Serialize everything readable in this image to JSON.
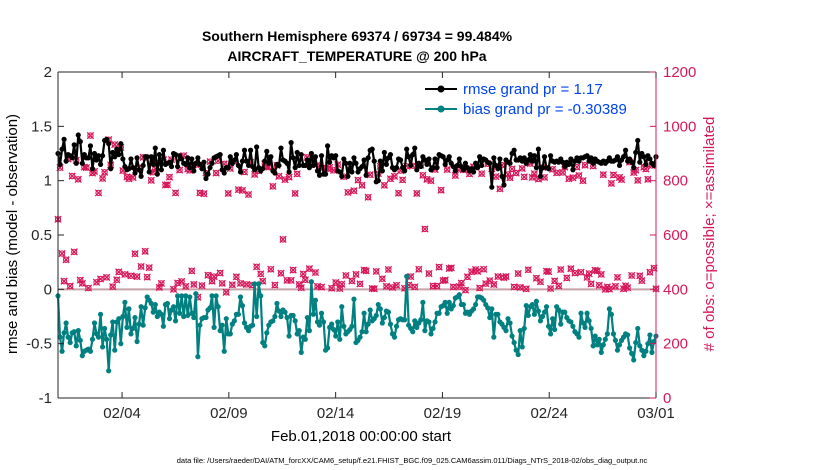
{
  "chart_data": {
    "type": "line",
    "title_line1": "Southern Hemisphere 69374 / 69734 = 99.484%",
    "title_line2": "AIRCRAFT_TEMPERATURE @ 200 hPa",
    "xlabel": "Feb.01,2018 00:00:00 start",
    "ylabel_left": "rmse and bias (model - observation)",
    "ylabel_right": "# of obs: o=possible; ×=assimilated",
    "footnote": "data file: /Users/raeder/DAI/ATM_forcXX/CAM6_setup/f.e21.FHIST_BGC.f09_025.CAM6assim.011/Diags_NTrS_2018-02/obs_diag_output.nc",
    "xlim": [
      0,
      28
    ],
    "ylim_left": [
      -1,
      2
    ],
    "ylim_right": [
      0,
      1200
    ],
    "x_ticks": [
      3,
      8,
      13,
      18,
      23,
      28
    ],
    "x_tick_labels": [
      "02/04",
      "02/09",
      "02/14",
      "02/19",
      "02/24",
      "03/01"
    ],
    "y_left_ticks": [
      -1,
      -0.5,
      0,
      0.5,
      1,
      1.5,
      2
    ],
    "y_left_tick_labels": [
      "-1",
      "-0.5",
      "0",
      "0.5",
      "1",
      "1.5",
      "2"
    ],
    "y_right_ticks": [
      0,
      200,
      400,
      600,
      800,
      1000,
      1200
    ],
    "y_right_tick_labels": [
      "0",
      "200",
      "400",
      "600",
      "800",
      "1000",
      "1200"
    ],
    "legend_location": "top-right",
    "colors": {
      "rmse": "#000000",
      "bias": "#008080",
      "obs": "#d6185b",
      "zero_line": "#c8a0a8",
      "legend_text": "#0044ee"
    },
    "series": [
      {
        "name": "rmse grand pr = 1.17",
        "axis": "left",
        "values": [
          1.25,
          1.15,
          1.29,
          1.38,
          1.18,
          1.24,
          1.23,
          1.21,
          1.33,
          1.16,
          1.42,
          1.36,
          1.16,
          1.24,
          1.21,
          1.21,
          1.32,
          1.11,
          1.25,
          1.19,
          1.23,
          1.15,
          1.23,
          1.37,
          1.38,
          1.34,
          1.11,
          1.26,
          1.22,
          1.29,
          1.24,
          1.34,
          1.2,
          1.13,
          1.1,
          1.11,
          1.2,
          1.12,
          1.07,
          1.21,
          1.1,
          1.04,
          1.14,
          1.22,
          1.22,
          1.08,
          1.22,
          1.15,
          1.3,
          1.06,
          1.24,
          1.1,
          1.28,
          1.15,
          1.16,
          1.17,
          1.13,
          1.25,
          1.24,
          1.13,
          1.23,
          1.2,
          1.16,
          1.15,
          1.21,
          1.12,
          1.2,
          1.09,
          1.16,
          1.21,
          1.15,
          1.11,
          1.17,
          1.02,
          1.06,
          1.12,
          1.16,
          1.21,
          1.22,
          1.23,
          1.24,
          1.1,
          1.07,
          1.12,
          1.12,
          1.22,
          1.16,
          1.19,
          1.24,
          1.14,
          1.08,
          1.18,
          1.28,
          1.18,
          1.14,
          1.28,
          1.13,
          1.1,
          1.31,
          1.12,
          1.09,
          1.11,
          1.18,
          1.27,
          1.16,
          1.22,
          1.09,
          1.07,
          1.15,
          1.14,
          1.3,
          1.19,
          1.18,
          1.16,
          1.08,
          1.35,
          1.21,
          1.12,
          1.26,
          1.14,
          1.24,
          1.14,
          1.14,
          1.19,
          1.12,
          1.25,
          1.14,
          1.22,
          1.09,
          1.05,
          1.23,
          1.06,
          1.06,
          1.32,
          1.17,
          1.23,
          1.21,
          1.23,
          1.09,
          1.08,
          1.04,
          1.2,
          1.16,
          1.04,
          1.16,
          1.08,
          1.21,
          1.16,
          1.08,
          1.11,
          1.13,
          1.19,
          1.05,
          1.21,
          1.28,
          1.29,
          1.18,
          0.99,
          1.0,
          1.18,
          1.09,
          1.26,
          1.15,
          1.21,
          1.24,
          1.12,
          1.1,
          1.12,
          1.2,
          1.19,
          1.12,
          1.09,
          1.29,
          1.22,
          1.14,
          1.24,
          1.3,
          1.1,
          1.16,
          1.13,
          1.22,
          1.19,
          1.15,
          1.2,
          1.1,
          1.12,
          1.2,
          1.12,
          1.24,
          1.23,
          1.22,
          1.15,
          1.19,
          1.22,
          1.16,
          1.13,
          1.09,
          1.14,
          1.2,
          1.13,
          1.1,
          1.16,
          1.12,
          1.09,
          1.11,
          1.08,
          1.16,
          1.12,
          1.22,
          1.14,
          1.2,
          1.19,
          1.17,
          1.16,
          0.94,
          1.21,
          1.14,
          1.11,
          1.2,
          1.04,
          0.96,
          1.19,
          1.17,
          1.16,
          1.25,
          1.28,
          1.19,
          1.19,
          1.21,
          1.18,
          1.21,
          1.16,
          1.19,
          1.24,
          1.18,
          1.23,
          1.12,
          1.29,
          1.04,
          1.12,
          1.22,
          1.12,
          1.11,
          1.23,
          1.18,
          1.17,
          1.18,
          1.17,
          1.2,
          1.17,
          1.13,
          1.17,
          1.15,
          1.2,
          1.1,
          1.18,
          1.21,
          1.18,
          1.21,
          1.21,
          1.22,
          1.23,
          1.18,
          1.21,
          1.16,
          1.2,
          1.18,
          1.17,
          1.16,
          1.18,
          1.16,
          1.18,
          1.21,
          1.18,
          1.18,
          1.19,
          1.22,
          1.14,
          1.19,
          1.22,
          1.28,
          1.18,
          1.2,
          1.17,
          1.12,
          1.26,
          1.37,
          1.17,
          1.25,
          1.22,
          1.15,
          1.23,
          1.2,
          1.16,
          1.14,
          1.22
        ]
      },
      {
        "name": "bias grand pr = -0.30389",
        "axis": "left",
        "values": [
          -0.06,
          -0.44,
          -0.57,
          -0.4,
          -0.31,
          -0.44,
          -0.49,
          -0.4,
          -0.39,
          -0.52,
          -0.38,
          -0.47,
          -0.61,
          -0.57,
          -0.56,
          -0.55,
          -0.57,
          -0.46,
          -0.31,
          -0.41,
          -0.44,
          -0.23,
          -0.53,
          -0.36,
          -0.46,
          -0.75,
          -0.42,
          -0.3,
          -0.56,
          -0.3,
          -0.27,
          -0.5,
          -0.25,
          -0.12,
          -0.35,
          -0.18,
          -0.41,
          -0.36,
          -0.26,
          -0.48,
          -0.32,
          -0.16,
          -0.33,
          -0.17,
          -0.07,
          -0.1,
          -0.13,
          -0.21,
          -0.14,
          -0.25,
          -0.21,
          -0.23,
          -0.34,
          -0.14,
          -0.13,
          -0.27,
          -0.19,
          -0.16,
          -0.29,
          -0.06,
          -0.22,
          -0.06,
          -0.25,
          -0.06,
          -0.24,
          -0.07,
          -0.22,
          -0.26,
          -0.04,
          -0.62,
          -0.33,
          -0.27,
          -0.26,
          -0.26,
          -0.19,
          -0.17,
          -0.06,
          -0.35,
          -0.06,
          -0.16,
          -0.38,
          -0.33,
          -0.57,
          -0.27,
          -0.41,
          -0.41,
          -0.32,
          -0.29,
          -0.23,
          -0.23,
          -0.07,
          -0.15,
          -0.31,
          -0.35,
          -0.38,
          -0.34,
          -0.33,
          0.05,
          -0.25,
          0.05,
          -0.06,
          -0.49,
          -0.52,
          -0.4,
          -0.33,
          -0.3,
          -0.29,
          -0.25,
          -0.13,
          -0.2,
          -0.25,
          -0.19,
          -0.21,
          -0.26,
          -0.43,
          -0.24,
          -0.24,
          -0.29,
          -0.41,
          -0.38,
          -0.58,
          -0.44,
          -0.46,
          -0.26,
          -0.38,
          0.07,
          -0.23,
          -0.1,
          -0.3,
          -0.33,
          -0.22,
          -0.3,
          -0.56,
          -0.54,
          -0.35,
          -0.32,
          -0.37,
          -0.43,
          -0.3,
          -0.46,
          -0.16,
          -0.34,
          -0.41,
          -0.39,
          -0.37,
          -0.34,
          -0.09,
          -0.49,
          -0.47,
          -0.44,
          -0.39,
          -0.22,
          -0.39,
          -0.32,
          -0.19,
          -0.29,
          -0.27,
          -0.24,
          -0.14,
          -0.18,
          -0.31,
          -0.26,
          -0.2,
          -0.21,
          -0.32,
          -0.41,
          -0.44,
          -0.34,
          -0.28,
          -0.27,
          -0.28,
          -0.28,
          0.12,
          -0.33,
          -0.36,
          -0.39,
          -0.29,
          -0.35,
          -0.31,
          -0.28,
          -0.12,
          -0.38,
          -0.29,
          -0.3,
          -0.41,
          -0.36,
          -0.3,
          -0.22,
          -0.22,
          -0.16,
          -0.15,
          -0.12,
          -0.22,
          -0.12,
          -0.18,
          -0.15,
          -0.08,
          -0.07,
          -0.05,
          -0.14,
          -0.14,
          -0.22,
          -0.21,
          -0.23,
          -0.2,
          -0.18,
          -0.14,
          -0.07,
          -0.07,
          -0.08,
          -0.1,
          -0.14,
          -0.17,
          -0.26,
          -0.18,
          -0.44,
          -0.23,
          -0.23,
          -0.3,
          -0.32,
          -0.35,
          -0.38,
          -0.27,
          -0.31,
          -0.43,
          -0.49,
          -0.56,
          -0.6,
          -0.38,
          -0.53,
          -0.36,
          -0.15,
          -0.24,
          -0.16,
          -0.14,
          -0.23,
          -0.11,
          -0.2,
          -0.29,
          -0.25,
          -0.21,
          -0.16,
          -0.34,
          -0.41,
          -0.27,
          -0.37,
          -0.16,
          -0.19,
          -0.32,
          -0.21,
          -0.21,
          -0.26,
          -0.29,
          -0.3,
          -0.34,
          -0.39,
          -0.41,
          -0.44,
          -0.22,
          -0.31,
          -0.35,
          -0.22,
          -0.29,
          -0.36,
          -0.52,
          -0.43,
          -0.51,
          -0.46,
          -0.58,
          -0.51,
          -0.46,
          -0.41,
          -0.18,
          -0.23,
          -0.41,
          -0.47,
          -0.56,
          -0.51,
          -0.47,
          -0.44,
          -0.41,
          -0.42,
          -0.54,
          -0.59,
          -0.65,
          -0.49,
          -0.36,
          -0.52,
          -0.56,
          -0.61,
          -0.57,
          -0.5,
          -0.42,
          -0.58,
          -0.48,
          -0.43
        ]
      },
      {
        "name": "# of obs possible/assimilated",
        "axis": "right",
        "values": [
          658,
          848,
          532,
          430,
          509,
          880,
          412,
          817,
          538,
          875,
          805,
          434,
          422,
          850,
          848,
          405,
          966,
          828,
          834,
          426,
          755,
          438,
          808,
          831,
          444,
          951,
          858,
          410,
          933,
          435,
          464,
          922,
          837,
          455,
          814,
          807,
          450,
          812,
          531,
          447,
          848,
          484,
          886,
          540,
          445,
          480,
          801,
          831,
          844,
          865,
          407,
          422,
          877,
          784,
          785,
          813,
          878,
          400,
          755,
          423,
          839,
          429,
          892,
          411,
          843,
          838,
          468,
          418,
          859,
          371,
          755,
          414,
          752,
          828,
          452,
          870,
          430,
          447,
          828,
          873,
          460,
          422,
          862,
          389,
          753,
          845,
          417,
          871,
          446,
          767,
          422,
          764,
          832,
          418,
          749,
          867,
          416,
          823,
          483,
          836,
          457,
          430,
          862,
          851,
          850,
          474,
          779,
          416,
          856,
          816,
          459,
          584,
          804,
          433,
          813,
          433,
          471,
          753,
          825,
          418,
          406,
          457,
          435,
          886,
          476,
          866,
          871,
          462,
          411,
          856,
          408,
          847,
          846,
          844,
          849,
          404,
          838,
          425,
          859,
          403,
          419,
          815,
          451,
          757,
          839,
          431,
          763,
          455,
          802,
          420,
          783,
          471,
          468,
          739,
          822,
          403,
          402,
          466,
          826,
          853,
          439,
          783,
          411,
          473,
          807,
          407,
          816,
          415,
          754,
          837,
          803,
          404,
          853,
          416,
          447,
          855,
          409,
          753,
          474,
          857,
          820,
          622,
          805,
          458,
          800,
          412,
          841,
          412,
          482,
          765,
          432,
          434,
          841,
          477,
          479,
          409,
          819,
          844,
          410,
          423,
          840,
          397,
          446,
          825,
          465,
          851,
          473,
          466,
          405,
          826,
          474,
          421,
          862,
          432,
          844,
          418,
          815,
          447,
          770,
          857,
          443,
          447,
          823,
          811,
          843,
          409,
          828,
          458,
          407,
          845,
          814,
          402,
          472,
          863,
          812,
          826,
          441,
          806,
          428,
          849,
          812,
          467,
          465,
          403,
          842,
          431,
          829,
          413,
          473,
          830,
          850,
          442,
          807,
          476,
          811,
          460,
          850,
          819,
          463,
          800,
          857,
          444,
          458,
          420,
          854,
          470,
          468,
          415,
          455,
          822,
          400,
          409,
          401,
          790,
          821,
          411,
          444,
          812,
          804,
          402,
          413,
          406,
          868,
          451,
          830,
          839,
          801,
          450,
          432,
          850,
          843,
          805,
          463,
          856,
          478,
          402
        ]
      }
    ]
  }
}
